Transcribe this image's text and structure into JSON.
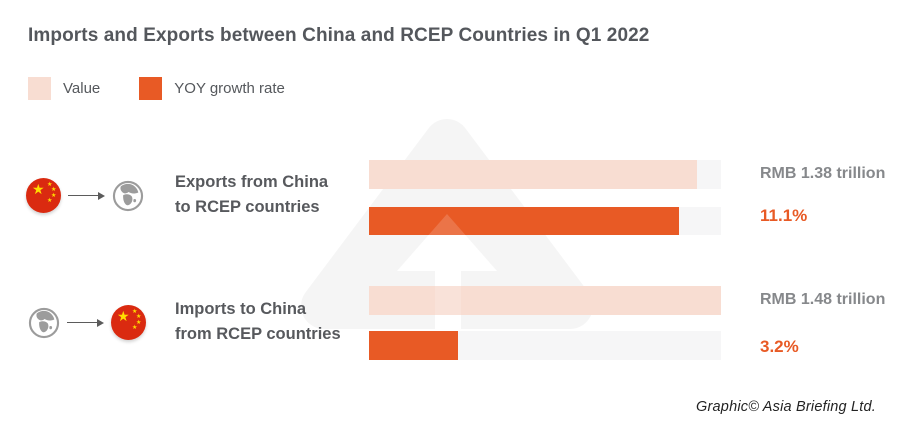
{
  "title": "Imports and Exports between China and RCEP Countries in Q1 2022",
  "legend": {
    "items": [
      {
        "label": "Value",
        "color": "#f8ddd2"
      },
      {
        "label": "YOY growth rate",
        "color": "#e85a25"
      }
    ]
  },
  "colors": {
    "value_bar": "#f8ddd2",
    "yoy_bar": "#e85a25",
    "bar_track": "#f6f6f7",
    "title_text": "#54575c",
    "amount_text": "#86888b",
    "flag_red": "#da2a10",
    "flag_star_yellow": "#ffde00",
    "globe_gray": "#9c9c9c"
  },
  "icons": {
    "row1": [
      "china-flag-icon",
      "arrow-right-icon",
      "globe-icon"
    ],
    "row2": [
      "globe-icon",
      "arrow-right-icon",
      "china-flag-icon"
    ]
  },
  "chart_data": {
    "type": "bar",
    "orientation": "horizontal",
    "title": "Imports and Exports between China and RCEP Countries in Q1 2022",
    "legend_entries": [
      "Value",
      "YOY growth rate"
    ],
    "legend_position": "top-left",
    "grid": false,
    "categories": [
      "Exports from China to RCEP countries",
      "Imports to China from RCEP countries"
    ],
    "series": [
      {
        "name": "Value (RMB trillion)",
        "values": [
          1.38,
          1.48
        ]
      },
      {
        "name": "YOY growth rate (%)",
        "values": [
          11.1,
          3.2
        ]
      }
    ],
    "groups": [
      {
        "label_lines": [
          "Exports from China",
          "to RCEP countries"
        ],
        "flow": "china-to-rcep",
        "value": {
          "label": "RMB 1.38 trillion",
          "amount_rmb_trillion": 1.38,
          "bar_fraction": 0.933
        },
        "yoy": {
          "label": "11.1%",
          "percent": 11.1,
          "bar_fraction": 0.881
        }
      },
      {
        "label_lines": [
          "Imports to China",
          "from RCEP countries"
        ],
        "flow": "rcep-to-china",
        "value": {
          "label": "RMB 1.48 trillion",
          "amount_rmb_trillion": 1.48,
          "bar_fraction": 1.0
        },
        "yoy": {
          "label": "3.2%",
          "percent": 3.2,
          "bar_fraction": 0.253
        }
      }
    ]
  },
  "credit": "Graphic© Asia Briefing Ltd."
}
